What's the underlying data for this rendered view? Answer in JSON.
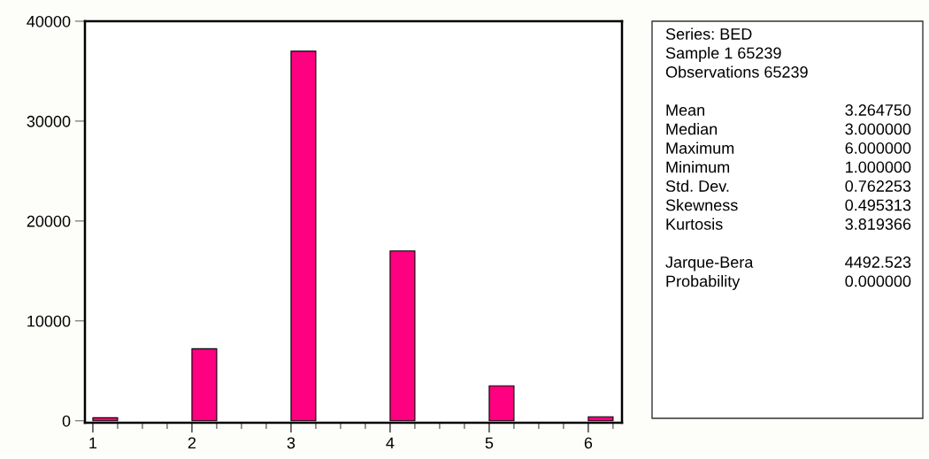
{
  "chart_data": {
    "type": "histogram",
    "bins": [
      1,
      1.25,
      1.5,
      1.75,
      2,
      2.25,
      2.5,
      2.75,
      3,
      3.25,
      3.5,
      3.75,
      4,
      4.25,
      4.5,
      4.75,
      5,
      5.25,
      5.5,
      5.75,
      6,
      6.25
    ],
    "values": [
      300,
      0,
      0,
      0,
      7200,
      0,
      0,
      0,
      37000,
      0,
      0,
      0,
      17000,
      0,
      0,
      0,
      3500,
      0,
      0,
      0,
      400
    ],
    "color": "#ff0080",
    "xlim": [
      0.92,
      6.34
    ],
    "xticks": [
      1,
      2,
      3,
      4,
      5,
      6
    ],
    "ylim": [
      -200,
      40000
    ],
    "yticks": [
      0,
      10000,
      20000,
      30000,
      40000
    ],
    "grid": false,
    "legend": false,
    "annotations": [
      "Series: BED",
      "Sample 1 65239",
      "Observations 65239",
      "Mean\t3.264750",
      "Median\t3.000000",
      "Maximum\t6.000000",
      "Minimum\t1.000000",
      "Std. Dev.\t0.762253",
      "Skewness\t0.495313",
      "Kurtosis\t3.819366",
      "Jarque-Bera\t4492.523",
      "Probability\t0.000000"
    ]
  }
}
